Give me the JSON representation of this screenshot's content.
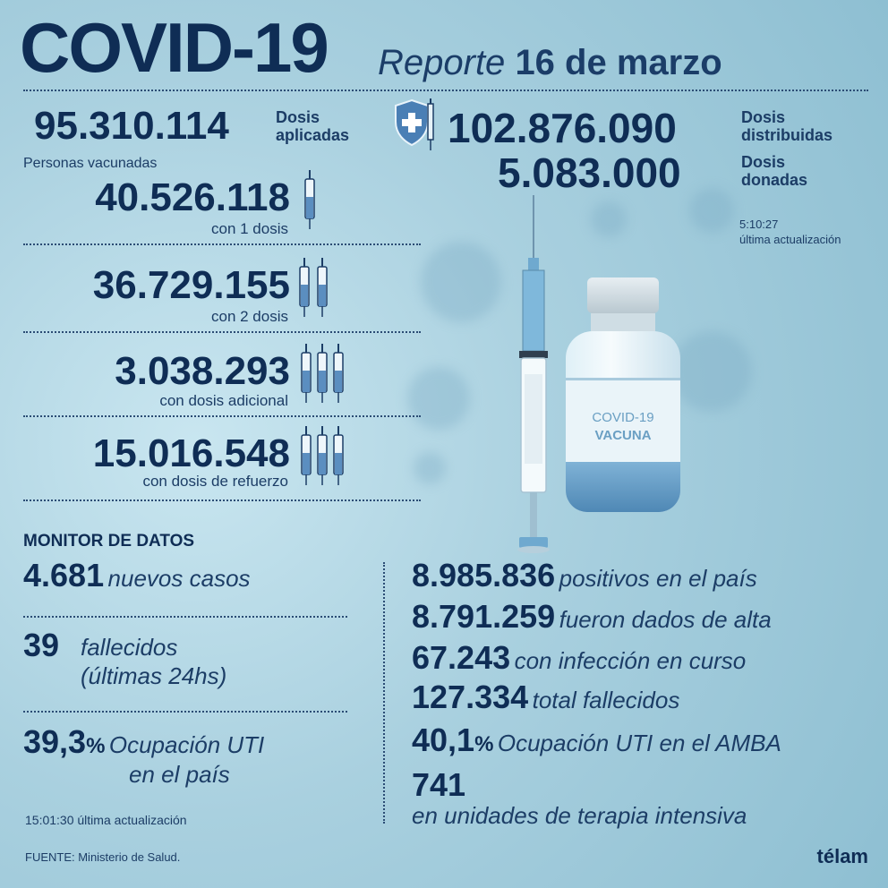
{
  "header": {
    "title": "COVID-19",
    "subtitle_prefix": "Reporte",
    "subtitle_date": "16 de marzo"
  },
  "doses": {
    "applied_value": "95.310.114",
    "applied_label_1": "Dosis",
    "applied_label_2": "aplicadas",
    "distributed_value": "102.876.090",
    "distributed_label_1": "Dosis",
    "distributed_label_2": "distribuidas",
    "donated_value": "5.083.000",
    "donated_label_1": "Dosis",
    "donated_label_2": "donadas",
    "update_time": "5:10:27",
    "update_label": "última actualización"
  },
  "vaccinated": {
    "heading": "Personas vacunadas",
    "rows": [
      {
        "value": "40.526.118",
        "label": "con 1 dosis",
        "syringes": 1
      },
      {
        "value": "36.729.155",
        "label": "con 2 dosis",
        "syringes": 2
      },
      {
        "value": "3.038.293",
        "label": "con dosis adicional",
        "syringes": 3
      },
      {
        "value": "15.016.548",
        "label": "con dosis de refuerzo",
        "syringes": 3
      }
    ]
  },
  "vial": {
    "line1": "COVID-19",
    "line2": "VACUNA"
  },
  "monitor": {
    "title": "MONITOR DE DATOS",
    "new_cases_value": "4.681",
    "new_cases_label": "nuevos casos",
    "deaths_value": "39",
    "deaths_label_1": "fallecidos",
    "deaths_label_2": "(últimas 24hs)",
    "uti_value": "39,3",
    "uti_pct": "%",
    "uti_label_1": "Ocupación UTI",
    "uti_label_2": "en el país",
    "update": "15:01:30 última actualización",
    "right": [
      {
        "value": "8.985.836",
        "label": "positivos en el país"
      },
      {
        "value": "8.791.259",
        "label": "fueron dados de alta"
      },
      {
        "value": "67.243",
        "label": "con infección en curso"
      },
      {
        "value": "127.334",
        "label": "total fallecidos"
      }
    ],
    "amba_value": "40,1",
    "amba_pct": "%",
    "amba_label": "Ocupación UTI en el AMBA",
    "icu_value": "741",
    "icu_label": "en unidades de terapia intensiva"
  },
  "footer": {
    "source": "FUENTE: Ministerio de Salud.",
    "logo": "télam"
  }
}
